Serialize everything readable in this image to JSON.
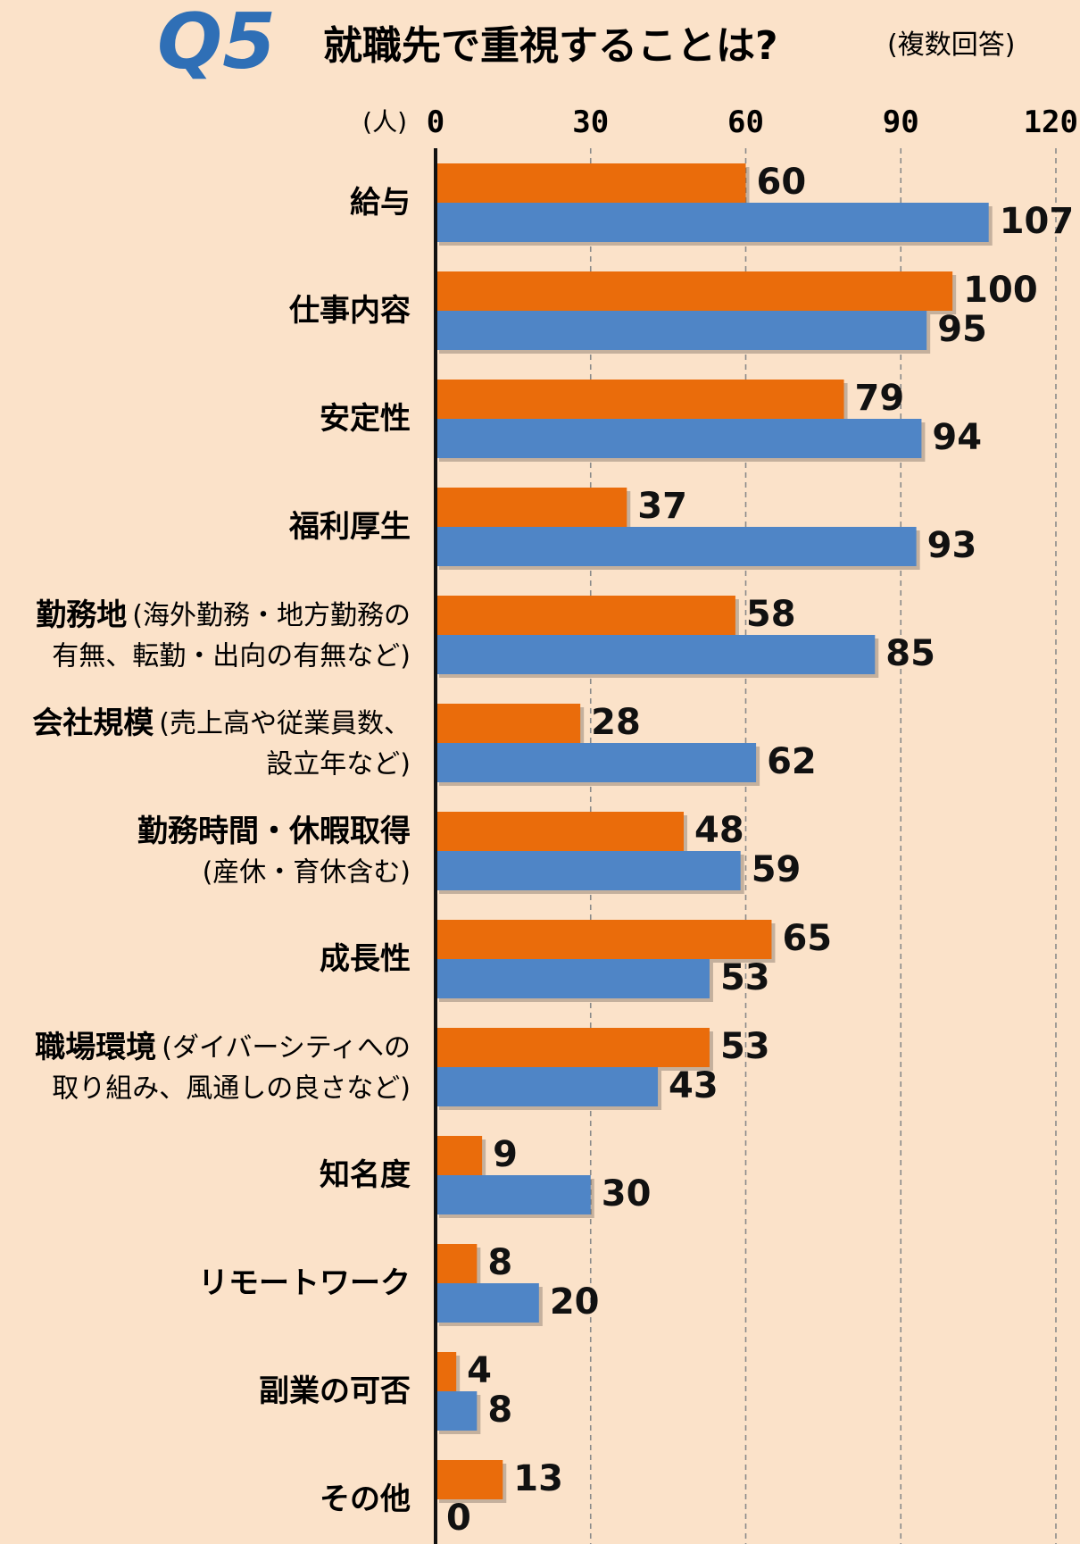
{
  "chart_data": {
    "type": "bar",
    "orientation": "horizontal",
    "title_prefix": "Q5",
    "title": "就職先で重視することは?",
    "subtitle": "(複数回答)",
    "unit_label": "(人)",
    "xlim": [
      0,
      120
    ],
    "ticks": [
      "0",
      "30",
      "60",
      "90",
      "120"
    ],
    "grid": true,
    "categories": [
      {
        "main": "給与",
        "note": "",
        "line2": ""
      },
      {
        "main": "仕事内容",
        "note": "",
        "line2": ""
      },
      {
        "main": "安定性",
        "note": "",
        "line2": ""
      },
      {
        "main": "福利厚生",
        "note": "",
        "line2": ""
      },
      {
        "main": "勤務地",
        "note": "(海外勤務・地方勤務の",
        "line2": "有無、転勤・出向の有無など)"
      },
      {
        "main": "会社規模",
        "note": "(売上高や従業員数、",
        "line2": "設立年など)"
      },
      {
        "main": "勤務時間・休暇取得",
        "note": "",
        "line2": "(産休・育休含む)"
      },
      {
        "main": "成長性",
        "note": "",
        "line2": ""
      },
      {
        "main": "職場環境",
        "note": "(ダイバーシティへの",
        "line2": "取り組み、風通しの良さなど)"
      },
      {
        "main": "知名度",
        "note": "",
        "line2": ""
      },
      {
        "main": "リモートワーク",
        "note": "",
        "line2": ""
      },
      {
        "main": "副業の可否",
        "note": "",
        "line2": ""
      },
      {
        "main": "その他",
        "note": "",
        "line2": ""
      }
    ],
    "series": [
      {
        "color": "#ea6c0b",
        "values": [
          60,
          100,
          79,
          37,
          58,
          28,
          48,
          65,
          53,
          9,
          8,
          4,
          13
        ]
      },
      {
        "color": "#4f85c6",
        "values": [
          107,
          95,
          94,
          93,
          85,
          62,
          59,
          53,
          43,
          30,
          20,
          8,
          0
        ]
      }
    ]
  },
  "colors": {
    "background": "#fbe2c9",
    "title_q": "#2f6fb6",
    "text": "#1a1a1a"
  }
}
